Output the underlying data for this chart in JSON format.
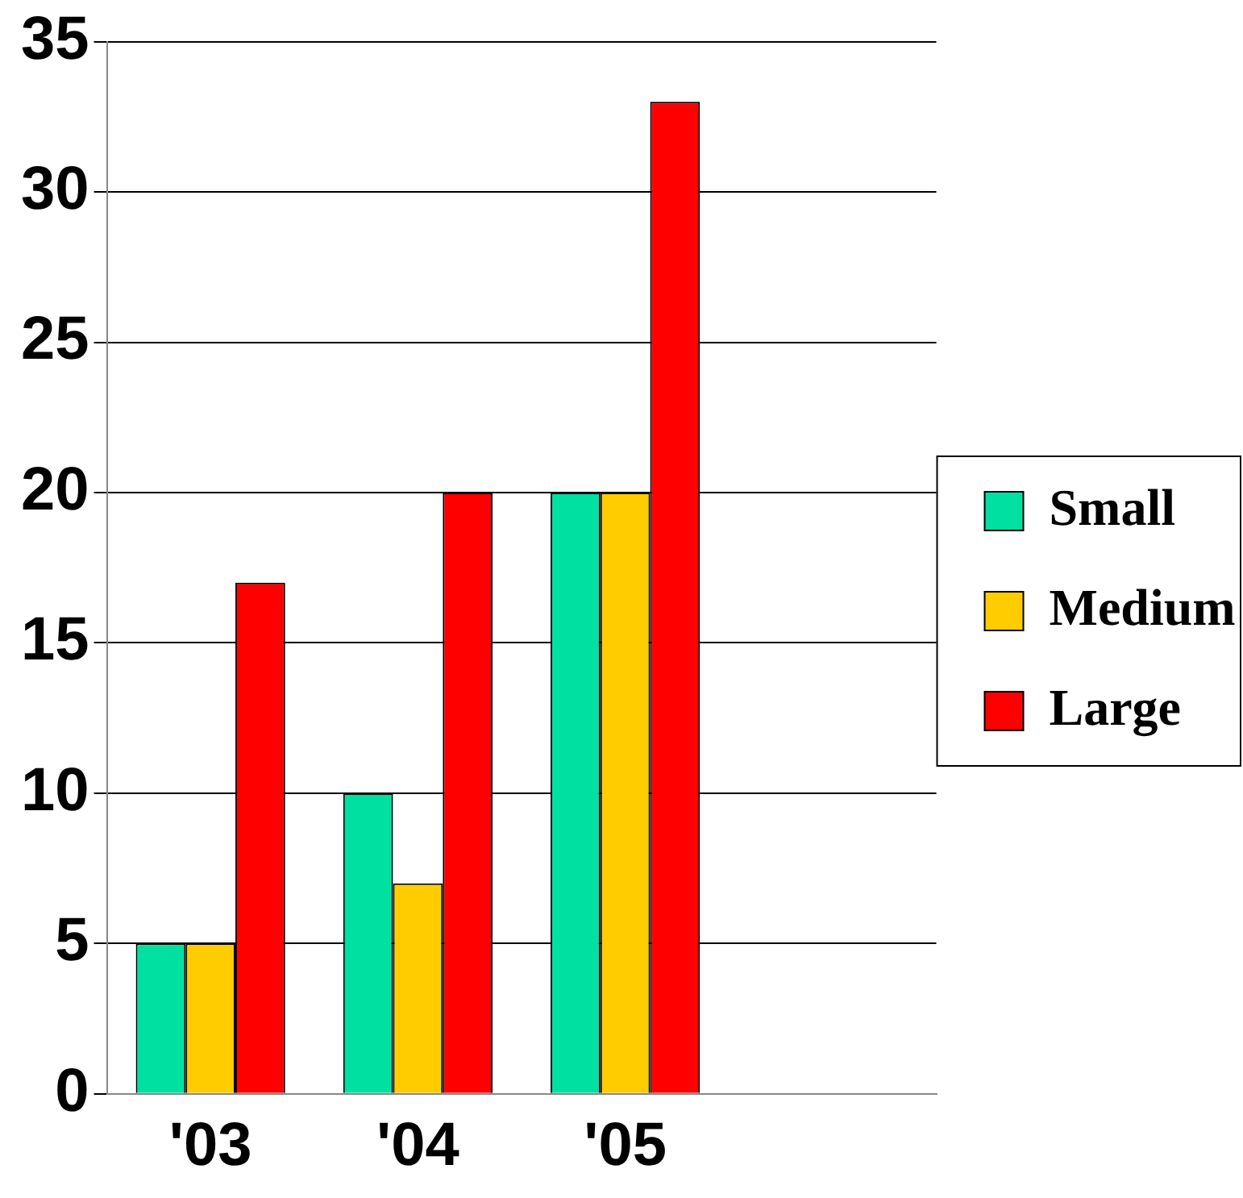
{
  "chart_data": {
    "type": "bar",
    "categories": [
      "'03",
      "'04",
      "'05",
      null
    ],
    "series": [
      {
        "name": "Small",
        "color": "#00e0a0",
        "values": [
          5,
          10,
          20,
          null
        ]
      },
      {
        "name": "Medium",
        "color": "#ffcc00",
        "values": [
          5,
          7,
          20,
          null
        ]
      },
      {
        "name": "Large",
        "color": "#ff0000",
        "values": [
          17,
          20,
          33,
          null
        ]
      }
    ],
    "ylim": [
      0,
      35
    ],
    "yticks": [
      0,
      5,
      10,
      15,
      20,
      25,
      30,
      35
    ],
    "grid": "y",
    "legend": "right"
  }
}
